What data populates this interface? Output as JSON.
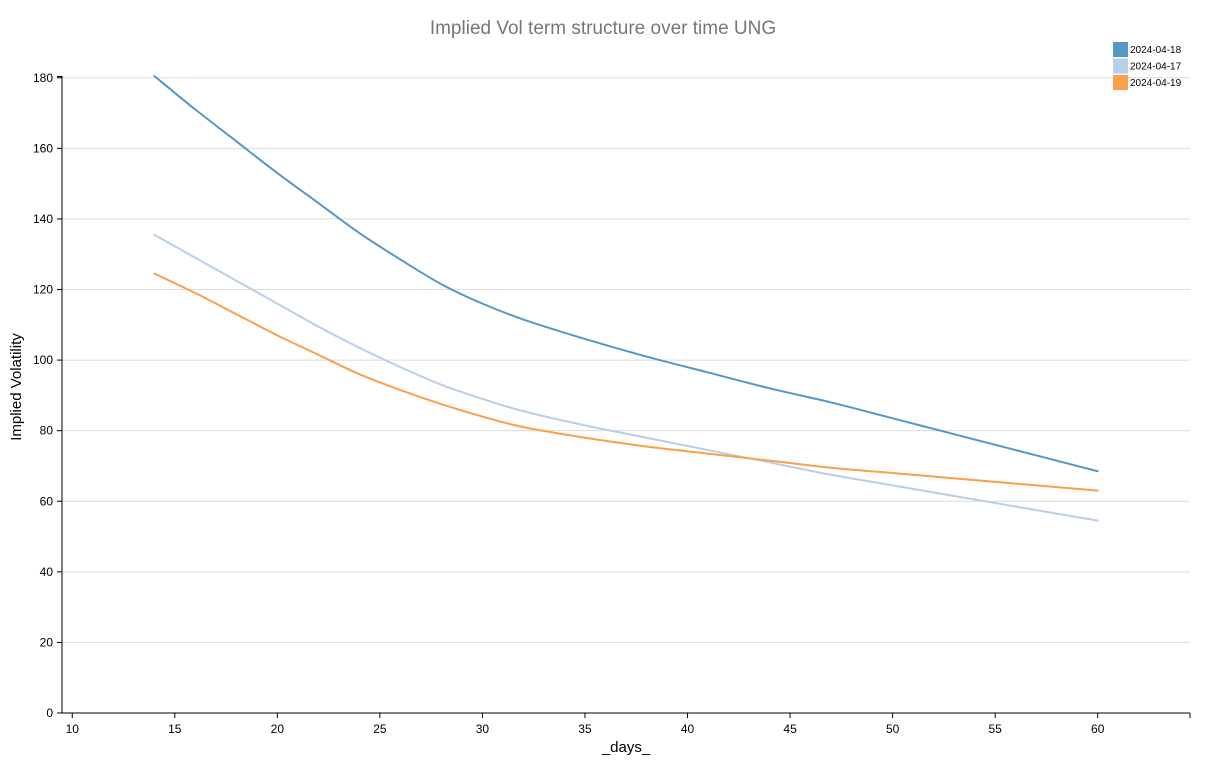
{
  "chart_data": {
    "type": "line",
    "title": "Implied Vol term structure over time UNG",
    "xlabel": "_days_",
    "ylabel": "Implied Volatility",
    "xlim": [
      9.5,
      64.5
    ],
    "ylim": [
      0,
      180.5
    ],
    "xticks": [
      10,
      15,
      20,
      25,
      30,
      35,
      40,
      45,
      50,
      55,
      60
    ],
    "yticks": [
      0,
      20,
      40,
      60,
      80,
      100,
      120,
      140,
      160,
      180
    ],
    "grid": "horizontal",
    "legend_position": "top-right",
    "x": [
      14,
      16,
      18,
      20,
      22,
      24,
      26,
      28,
      30,
      32,
      35,
      38,
      41,
      44,
      47,
      50,
      53,
      56,
      60
    ],
    "series": [
      {
        "name": "2024-04-18",
        "color": "#5498c6",
        "values": [
          180.5,
          171,
          162,
          153,
          144.5,
          136,
          128.5,
          121.5,
          116,
          111.5,
          106,
          101,
          96.5,
          92,
          88,
          83.5,
          79,
          74.5,
          68.5
        ]
      },
      {
        "name": "2024-04-17",
        "color": "#b8cfe9",
        "values": [
          135.5,
          129,
          122.5,
          116,
          109.5,
          103.5,
          98,
          93,
          89,
          85.5,
          81.5,
          78,
          74.5,
          71,
          67.5,
          64.5,
          61.5,
          58.5,
          54.5
        ]
      },
      {
        "name": "2024-04-19",
        "color": "#f9a04a",
        "values": [
          124.5,
          119,
          113,
          107,
          101.5,
          96,
          91.5,
          87.5,
          84,
          81,
          78,
          75.5,
          73.5,
          71.5,
          69.5,
          68,
          66.5,
          65,
          63
        ]
      }
    ]
  }
}
